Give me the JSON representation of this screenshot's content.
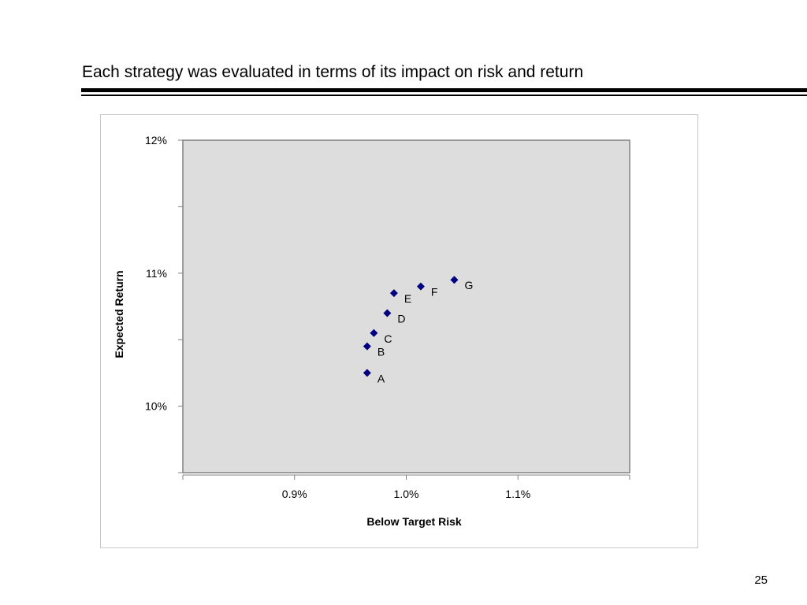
{
  "slide": {
    "title": "Each strategy was evaluated in terms of its impact on risk and return",
    "page_number": "25"
  },
  "colors": {
    "plot_background": "#dddddd",
    "marker": "#000080",
    "axis": "#808080",
    "frame_border": "#c8c8c8"
  },
  "chart_data": {
    "type": "scatter",
    "title": "",
    "xlabel": "Below Target Risk",
    "ylabel": "Expected Return",
    "xlim": [
      0.8,
      1.2
    ],
    "ylim": [
      9.5,
      12.0
    ],
    "x_ticks": [
      0.9,
      1.0,
      1.1
    ],
    "x_tick_labels": [
      "0.9%",
      "1.0%",
      "1.1%"
    ],
    "y_ticks": [
      10,
      11,
      12
    ],
    "y_tick_labels": [
      "10%",
      "11%",
      "12%"
    ],
    "grid": false,
    "legend": "none",
    "points": [
      {
        "label": "A",
        "x": 0.965,
        "y": 10.25
      },
      {
        "label": "B",
        "x": 0.965,
        "y": 10.45
      },
      {
        "label": "C",
        "x": 0.971,
        "y": 10.55
      },
      {
        "label": "D",
        "x": 0.983,
        "y": 10.7
      },
      {
        "label": "E",
        "x": 0.989,
        "y": 10.85
      },
      {
        "label": "F",
        "x": 1.013,
        "y": 10.9
      },
      {
        "label": "G",
        "x": 1.043,
        "y": 10.95
      }
    ]
  }
}
